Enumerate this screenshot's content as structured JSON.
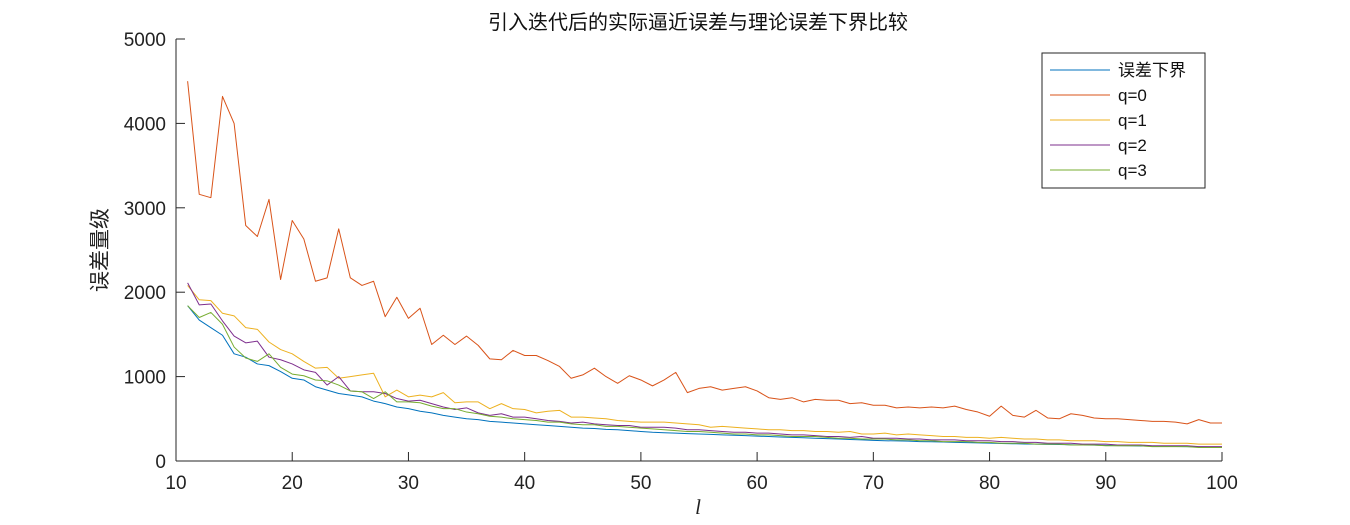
{
  "chart_data": {
    "type": "line",
    "title": "引入迭代后的实际逼近误差与理论误差下界比较",
    "xlabel": "l",
    "ylabel": "误差量级",
    "xlim": [
      10,
      100
    ],
    "ylim": [
      0,
      5000
    ],
    "xticks": [
      10,
      20,
      30,
      40,
      50,
      60,
      70,
      80,
      90,
      100
    ],
    "yticks": [
      0,
      1000,
      2000,
      3000,
      4000,
      5000
    ],
    "grid": false,
    "legend_position": "top-right",
    "x": [
      11,
      12,
      13,
      14,
      15,
      16,
      17,
      18,
      19,
      20,
      21,
      22,
      23,
      24,
      25,
      26,
      27,
      28,
      29,
      30,
      31,
      32,
      33,
      34,
      35,
      36,
      37,
      38,
      39,
      40,
      41,
      42,
      43,
      44,
      45,
      46,
      47,
      48,
      49,
      50,
      51,
      52,
      53,
      54,
      55,
      56,
      57,
      58,
      59,
      60,
      61,
      62,
      63,
      64,
      65,
      66,
      67,
      68,
      69,
      70,
      71,
      72,
      73,
      74,
      75,
      76,
      77,
      78,
      79,
      80,
      81,
      82,
      83,
      84,
      85,
      86,
      87,
      88,
      89,
      90,
      91,
      92,
      93,
      94,
      95,
      96,
      97,
      98,
      99,
      100
    ],
    "series": [
      {
        "name": "误差下界",
        "color": "#0072BD",
        "values": [
          1840,
          1670,
          1580,
          1490,
          1270,
          1230,
          1150,
          1130,
          1060,
          980,
          960,
          880,
          840,
          800,
          780,
          760,
          710,
          680,
          640,
          620,
          590,
          570,
          540,
          520,
          500,
          490,
          470,
          460,
          450,
          440,
          430,
          420,
          410,
          400,
          390,
          385,
          375,
          370,
          360,
          350,
          340,
          335,
          330,
          325,
          320,
          315,
          310,
          305,
          300,
          295,
          290,
          285,
          280,
          275,
          270,
          265,
          260,
          255,
          250,
          245,
          240,
          238,
          235,
          230,
          228,
          225,
          220,
          218,
          215,
          212,
          208,
          205,
          202,
          200,
          197,
          195,
          192,
          190,
          188,
          185,
          182,
          180,
          178,
          176,
          174,
          172,
          170,
          168,
          166,
          165
        ]
      },
      {
        "name": "q=0",
        "color": "#D95319",
        "values": [
          4500,
          3160,
          3120,
          4320,
          4000,
          2790,
          2660,
          3100,
          2150,
          2850,
          2630,
          2130,
          2170,
          2750,
          2170,
          2080,
          2130,
          1710,
          1940,
          1690,
          1810,
          1380,
          1490,
          1380,
          1480,
          1370,
          1210,
          1200,
          1310,
          1250,
          1250,
          1190,
          1120,
          980,
          1020,
          1100,
          1000,
          920,
          1010,
          960,
          890,
          960,
          1050,
          810,
          860,
          880,
          840,
          860,
          880,
          830,
          750,
          730,
          750,
          700,
          730,
          720,
          720,
          680,
          690,
          660,
          660,
          630,
          640,
          630,
          640,
          630,
          650,
          610,
          580,
          530,
          650,
          540,
          520,
          600,
          510,
          500,
          560,
          540,
          510,
          500,
          500,
          490,
          480,
          470,
          470,
          460,
          440,
          490,
          450,
          450
        ]
      },
      {
        "name": "q=1",
        "color": "#EDB120",
        "values": [
          2080,
          1910,
          1900,
          1750,
          1720,
          1580,
          1560,
          1410,
          1320,
          1270,
          1180,
          1100,
          1110,
          980,
          1000,
          1020,
          1040,
          760,
          840,
          760,
          780,
          760,
          810,
          690,
          700,
          700,
          620,
          680,
          620,
          610,
          570,
          590,
          600,
          520,
          520,
          510,
          500,
          480,
          470,
          460,
          460,
          460,
          450,
          440,
          430,
          400,
          410,
          400,
          390,
          380,
          370,
          370,
          360,
          360,
          350,
          350,
          340,
          350,
          320,
          320,
          330,
          310,
          320,
          310,
          300,
          290,
          290,
          280,
          280,
          270,
          280,
          270,
          260,
          260,
          250,
          250,
          240,
          240,
          240,
          230,
          230,
          220,
          220,
          220,
          210,
          210,
          210,
          200,
          200,
          200
        ]
      },
      {
        "name": "q=2",
        "color": "#7E2F8E",
        "values": [
          2110,
          1850,
          1860,
          1660,
          1480,
          1400,
          1420,
          1230,
          1200,
          1150,
          1080,
          1050,
          900,
          1000,
          830,
          820,
          820,
          800,
          740,
          710,
          720,
          680,
          640,
          610,
          630,
          570,
          540,
          560,
          520,
          520,
          500,
          480,
          470,
          450,
          460,
          440,
          430,
          420,
          420,
          400,
          400,
          400,
          390,
          370,
          370,
          360,
          350,
          340,
          340,
          330,
          330,
          320,
          310,
          310,
          300,
          290,
          290,
          280,
          290,
          270,
          270,
          270,
          260,
          260,
          250,
          250,
          250,
          240,
          240,
          240,
          230,
          230,
          220,
          220,
          210,
          210,
          210,
          200,
          200,
          200,
          190,
          190,
          190,
          180,
          180,
          180,
          180,
          170,
          170,
          170
        ]
      },
      {
        "name": "q=3",
        "color": "#77AC30",
        "values": [
          1840,
          1700,
          1760,
          1620,
          1350,
          1220,
          1180,
          1270,
          1110,
          1030,
          1010,
          960,
          950,
          900,
          830,
          820,
          740,
          820,
          700,
          700,
          690,
          650,
          620,
          620,
          580,
          560,
          530,
          520,
          500,
          490,
          480,
          460,
          460,
          440,
          430,
          430,
          410,
          410,
          400,
          390,
          380,
          370,
          360,
          350,
          350,
          340,
          330,
          320,
          320,
          310,
          310,
          300,
          290,
          290,
          290,
          280,
          270,
          270,
          260,
          260,
          260,
          250,
          250,
          240,
          240,
          230,
          230,
          230,
          220,
          220,
          210,
          210,
          210,
          200,
          200,
          200,
          190,
          190,
          190,
          180,
          180,
          180,
          180,
          170,
          170,
          170,
          170,
          160,
          160,
          160
        ]
      }
    ]
  }
}
